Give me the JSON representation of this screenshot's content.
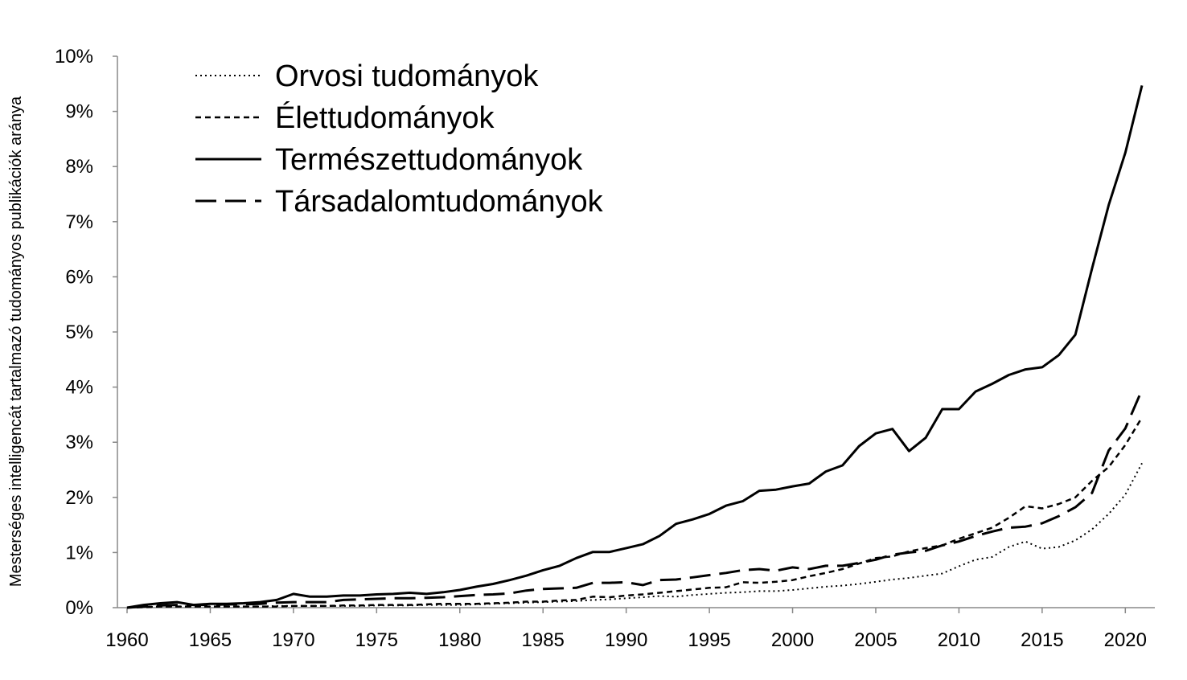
{
  "chart_data": {
    "type": "line",
    "title": "",
    "xlabel": "",
    "ylabel": "Mesterséges intelligencát tartalmazó tudományos publikációk aránya",
    "xlim": [
      1960,
      2021
    ],
    "ylim": [
      0,
      10
    ],
    "x_ticks": [
      1960,
      1965,
      1970,
      1975,
      1980,
      1985,
      1990,
      1995,
      2000,
      2005,
      2010,
      2015,
      2020
    ],
    "y_ticks": [
      0,
      1,
      2,
      3,
      4,
      5,
      6,
      7,
      8,
      9,
      10
    ],
    "y_tick_labels": [
      "0%",
      "1%",
      "2%",
      "3%",
      "4%",
      "5%",
      "6%",
      "7%",
      "8%",
      "9%",
      "10%"
    ],
    "legend_position": "top-left",
    "grid": false,
    "x": [
      1960,
      1961,
      1962,
      1963,
      1964,
      1965,
      1966,
      1967,
      1968,
      1969,
      1970,
      1971,
      1972,
      1973,
      1974,
      1975,
      1976,
      1977,
      1978,
      1979,
      1980,
      1981,
      1982,
      1983,
      1984,
      1985,
      1986,
      1987,
      1988,
      1989,
      1990,
      1991,
      1992,
      1993,
      1994,
      1995,
      1996,
      1997,
      1998,
      1999,
      2000,
      2001,
      2002,
      2003,
      2004,
      2005,
      2006,
      2007,
      2008,
      2009,
      2010,
      2011,
      2012,
      2013,
      2014,
      2015,
      2016,
      2017,
      2018,
      2019,
      2020,
      2021
    ],
    "series": [
      {
        "name": "Orvosi tudományok",
        "dash": "2,4",
        "width": 2,
        "values": [
          0,
          0.01,
          0.02,
          0.02,
          0.02,
          0.02,
          0.02,
          0.02,
          0.02,
          0.03,
          0.03,
          0.03,
          0.03,
          0.03,
          0.03,
          0.04,
          0.04,
          0.04,
          0.05,
          0.05,
          0.05,
          0.06,
          0.07,
          0.08,
          0.09,
          0.1,
          0.11,
          0.12,
          0.14,
          0.15,
          0.17,
          0.19,
          0.21,
          0.2,
          0.23,
          0.25,
          0.27,
          0.28,
          0.3,
          0.3,
          0.32,
          0.35,
          0.38,
          0.4,
          0.43,
          0.47,
          0.51,
          0.54,
          0.58,
          0.62,
          0.75,
          0.87,
          0.92,
          1.1,
          1.2,
          1.07,
          1.1,
          1.22,
          1.42,
          1.7,
          2.05,
          2.62
        ]
      },
      {
        "name": "Élettudományok",
        "dash": "7,5",
        "width": 2.5,
        "values": [
          0,
          0.01,
          0.02,
          0.02,
          0.02,
          0.02,
          0.02,
          0.02,
          0.02,
          0.02,
          0.03,
          0.03,
          0.03,
          0.04,
          0.04,
          0.05,
          0.05,
          0.05,
          0.06,
          0.07,
          0.07,
          0.07,
          0.08,
          0.09,
          0.11,
          0.11,
          0.13,
          0.14,
          0.2,
          0.19,
          0.22,
          0.24,
          0.27,
          0.3,
          0.33,
          0.36,
          0.37,
          0.46,
          0.45,
          0.47,
          0.5,
          0.57,
          0.63,
          0.7,
          0.8,
          0.9,
          0.93,
          1.02,
          1.08,
          1.13,
          1.25,
          1.35,
          1.45,
          1.63,
          1.84,
          1.8,
          1.88,
          2.0,
          2.3,
          2.55,
          2.95,
          3.45
        ]
      },
      {
        "name": "Természettudományok",
        "dash": "",
        "width": 3,
        "values": [
          0,
          0.05,
          0.08,
          0.1,
          0.05,
          0.07,
          0.07,
          0.08,
          0.1,
          0.14,
          0.25,
          0.2,
          0.2,
          0.22,
          0.22,
          0.24,
          0.25,
          0.27,
          0.25,
          0.28,
          0.32,
          0.38,
          0.43,
          0.5,
          0.58,
          0.68,
          0.76,
          0.9,
          1.01,
          1.01,
          1.08,
          1.15,
          1.3,
          1.52,
          1.6,
          1.7,
          1.85,
          1.93,
          2.12,
          2.14,
          2.2,
          2.25,
          2.47,
          2.58,
          2.93,
          3.16,
          3.24,
          2.84,
          3.08,
          3.6,
          3.6,
          3.92,
          4.06,
          4.22,
          4.32,
          4.36,
          4.58,
          4.95,
          6.15,
          7.3,
          8.25,
          9.47
        ]
      },
      {
        "name": "Társadalomtudományok",
        "dash": "26,11",
        "width": 3,
        "values": [
          0,
          0.02,
          0.04,
          0.05,
          0.05,
          0.05,
          0.06,
          0.06,
          0.07,
          0.09,
          0.1,
          0.1,
          0.1,
          0.14,
          0.15,
          0.16,
          0.17,
          0.17,
          0.18,
          0.19,
          0.21,
          0.23,
          0.24,
          0.26,
          0.31,
          0.34,
          0.35,
          0.36,
          0.45,
          0.45,
          0.46,
          0.41,
          0.5,
          0.51,
          0.55,
          0.59,
          0.63,
          0.68,
          0.7,
          0.67,
          0.73,
          0.7,
          0.76,
          0.76,
          0.81,
          0.87,
          0.96,
          1.0,
          1.03,
          1.13,
          1.2,
          1.3,
          1.38,
          1.45,
          1.47,
          1.53,
          1.66,
          1.82,
          2.08,
          2.85,
          3.25,
          3.95
        ]
      }
    ]
  }
}
